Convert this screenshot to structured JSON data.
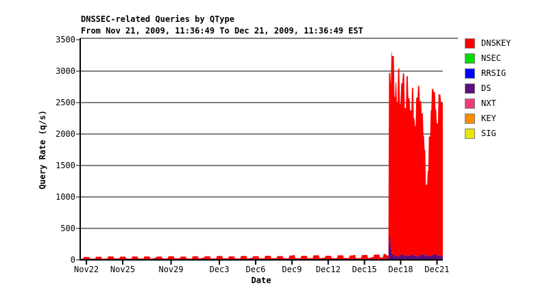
{
  "header": {
    "title": "DNSSEC-related Queries by QType",
    "subtitle": "From Nov 21, 2009, 11:36:49 To Dec 21, 2009, 11:36:49 EST"
  },
  "colors": {
    "axis": "#000000",
    "grid": "#000000",
    "legend_box_border": "#7f7f7f",
    "background": "#ffffff"
  },
  "chart_data": {
    "type": "area",
    "stacked": true,
    "title": "DNSSEC-related Queries by QType",
    "subtitle": "From Nov 21, 2009, 11:36:49 To Dec 21, 2009, 11:36:49 EST",
    "xlabel": "Date",
    "ylabel": "Query Rate (q/s)",
    "x_unit": "days since Nov 21, 2009, 11:36:49",
    "xlim": [
      0,
      30
    ],
    "ylim": [
      0,
      3500
    ],
    "grid": true,
    "legend_position": "right",
    "yticks": [
      {
        "value": 0,
        "label": "0"
      },
      {
        "value": 500,
        "label": "500"
      },
      {
        "value": 1000,
        "label": "1000"
      },
      {
        "value": 1500,
        "label": "1500"
      },
      {
        "value": 2000,
        "label": "2000"
      },
      {
        "value": 2500,
        "label": "2500"
      },
      {
        "value": 3000,
        "label": "3000"
      },
      {
        "value": 3500,
        "label": "3500"
      }
    ],
    "xticks": [
      {
        "t": 0.516,
        "label": "Nov22"
      },
      {
        "t": 3.516,
        "label": "Nov25"
      },
      {
        "t": 7.516,
        "label": "Nov29"
      },
      {
        "t": 11.516,
        "label": "Dec3"
      },
      {
        "t": 14.516,
        "label": "Dec6"
      },
      {
        "t": 17.516,
        "label": "Dec9"
      },
      {
        "t": 20.516,
        "label": "Dec12"
      },
      {
        "t": 23.516,
        "label": "Dec15"
      },
      {
        "t": 26.516,
        "label": "Dec18"
      },
      {
        "t": 29.516,
        "label": "Dec21"
      }
    ],
    "stack_order": [
      "SIG",
      "KEY",
      "NXT",
      "RRSIG",
      "NSEC",
      "DS",
      "DNSKEY"
    ],
    "series": [
      {
        "name": "DNSKEY",
        "color": "#ff0000",
        "points": [
          [
            0,
            10
          ],
          [
            0.3,
            38
          ],
          [
            0.8,
            12
          ],
          [
            1.3,
            40
          ],
          [
            1.8,
            11
          ],
          [
            2.3,
            43
          ],
          [
            2.8,
            13
          ],
          [
            3.3,
            39
          ],
          [
            3.8,
            12
          ],
          [
            4.3,
            44
          ],
          [
            4.8,
            14
          ],
          [
            5.3,
            45
          ],
          [
            5.8,
            12
          ],
          [
            6.3,
            41
          ],
          [
            6.8,
            13
          ],
          [
            7.3,
            46
          ],
          [
            7.8,
            14
          ],
          [
            8.3,
            42
          ],
          [
            8.8,
            12
          ],
          [
            9.3,
            47
          ],
          [
            9.8,
            15
          ],
          [
            10.3,
            44
          ],
          [
            10.8,
            13
          ],
          [
            11.3,
            49
          ],
          [
            11.8,
            14
          ],
          [
            12.3,
            45
          ],
          [
            12.8,
            13
          ],
          [
            13.3,
            51
          ],
          [
            13.8,
            15
          ],
          [
            14.3,
            47
          ],
          [
            14.8,
            14
          ],
          [
            15.3,
            53
          ],
          [
            15.8,
            16
          ],
          [
            16.3,
            49
          ],
          [
            16.8,
            15
          ],
          [
            17.3,
            57
          ],
          [
            17.8,
            16
          ],
          [
            18.3,
            51
          ],
          [
            18.8,
            15
          ],
          [
            19.3,
            59
          ],
          [
            19.8,
            17
          ],
          [
            20.3,
            54
          ],
          [
            20.8,
            16
          ],
          [
            21.3,
            61
          ],
          [
            21.8,
            18
          ],
          [
            22.3,
            57
          ],
          [
            22.8,
            17
          ],
          [
            23.3,
            64
          ],
          [
            23.8,
            20
          ],
          [
            24.3,
            69
          ],
          [
            24.8,
            25
          ],
          [
            25.1,
            78
          ],
          [
            25.35,
            45
          ],
          [
            25.55,
            2600
          ],
          [
            25.75,
            3150
          ],
          [
            26.0,
            2520
          ],
          [
            26.1,
            2760
          ],
          [
            26.2,
            2450
          ],
          [
            26.3,
            2980
          ],
          [
            26.45,
            2400
          ],
          [
            26.55,
            2720
          ],
          [
            26.7,
            2880
          ],
          [
            26.85,
            2340
          ],
          [
            27.0,
            2860
          ],
          [
            27.15,
            2500
          ],
          [
            27.3,
            2300
          ],
          [
            27.45,
            2650
          ],
          [
            27.6,
            2180
          ],
          [
            27.7,
            2060
          ],
          [
            27.8,
            2520
          ],
          [
            27.95,
            2700
          ],
          [
            28.1,
            2450
          ],
          [
            28.25,
            2240
          ],
          [
            28.4,
            1880
          ],
          [
            28.5,
            1675
          ],
          [
            28.6,
            1120
          ],
          [
            28.75,
            1350
          ],
          [
            28.85,
            1900
          ],
          [
            29.0,
            2300
          ],
          [
            29.1,
            2640
          ],
          [
            29.25,
            2580
          ],
          [
            29.4,
            2300
          ],
          [
            29.5,
            2100
          ],
          [
            29.65,
            2560
          ],
          [
            29.85,
            2430
          ]
        ]
      },
      {
        "name": "NSEC",
        "color": "#00dd00",
        "points": [
          [
            0,
            0
          ],
          [
            6.1,
            6
          ],
          [
            6.3,
            0
          ],
          [
            10.1,
            7
          ],
          [
            10.3,
            0
          ],
          [
            14.1,
            6
          ],
          [
            14.3,
            0
          ],
          [
            17.6,
            7
          ],
          [
            17.8,
            0
          ],
          [
            20.1,
            8
          ],
          [
            20.3,
            0
          ],
          [
            22.6,
            7
          ],
          [
            22.8,
            0
          ],
          [
            24.1,
            8
          ],
          [
            24.3,
            0
          ],
          [
            25.35,
            9
          ],
          [
            25.55,
            0
          ]
        ]
      },
      {
        "name": "RRSIG",
        "color": "#0000ff",
        "points": [
          [
            0,
            0
          ]
        ]
      },
      {
        "name": "DS",
        "color": "#5c0d7d",
        "points": [
          [
            0,
            9
          ],
          [
            2,
            11
          ],
          [
            4,
            9
          ],
          [
            6,
            11
          ],
          [
            8,
            10
          ],
          [
            10,
            12
          ],
          [
            12,
            10
          ],
          [
            14,
            12
          ],
          [
            16,
            11
          ],
          [
            18,
            13
          ],
          [
            20,
            11
          ],
          [
            22,
            13
          ],
          [
            24,
            14
          ],
          [
            25.3,
            16
          ],
          [
            25.55,
            370
          ],
          [
            25.7,
            180
          ],
          [
            25.8,
            90
          ],
          [
            26.0,
            65
          ],
          [
            26.2,
            58
          ],
          [
            26.4,
            75
          ],
          [
            26.6,
            88
          ],
          [
            26.8,
            70
          ],
          [
            27.0,
            60
          ],
          [
            27.2,
            72
          ],
          [
            27.4,
            84
          ],
          [
            27.6,
            68
          ],
          [
            27.8,
            58
          ],
          [
            28.0,
            70
          ],
          [
            28.2,
            86
          ],
          [
            28.5,
            72
          ],
          [
            28.8,
            60
          ],
          [
            29.0,
            72
          ],
          [
            29.2,
            88
          ],
          [
            29.5,
            70
          ],
          [
            29.8,
            62
          ]
        ]
      },
      {
        "name": "NXT",
        "color": "#ee3d7c",
        "points": [
          [
            0,
            0
          ]
        ]
      },
      {
        "name": "KEY",
        "color": "#ff8c00",
        "points": [
          [
            0,
            0
          ]
        ]
      },
      {
        "name": "SIG",
        "color": "#e6e600",
        "points": [
          [
            0,
            0
          ]
        ]
      }
    ]
  }
}
